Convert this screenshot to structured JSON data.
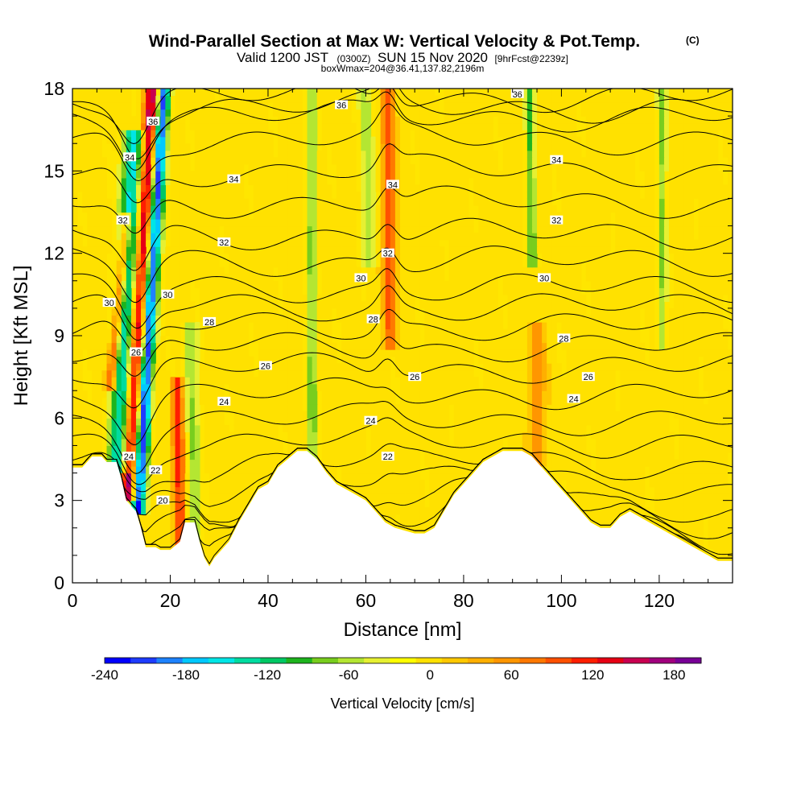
{
  "title": {
    "main": "Wind-Parallel Section at Max W: Vertical Velocity & Pot.Temp.",
    "copyright": "(C)",
    "line2_a": "Valid 1200 JST",
    "line2_b": "(0300Z)",
    "line2_c": "SUN 15 Nov 2020",
    "line2_d": "[9hrFcst@2239z]",
    "line3": "boxWmax=204@36.41,137.82,2196m"
  },
  "chart_data": {
    "type": "heatmap",
    "xlabel": "Distance [nm]",
    "ylabel": "Height [Kft MSL]",
    "xlim": [
      0,
      135
    ],
    "ylim": [
      0,
      18
    ],
    "x_ticks": [
      0,
      20,
      40,
      60,
      80,
      100,
      120
    ],
    "y_ticks": [
      0,
      3,
      6,
      9,
      12,
      15,
      18
    ],
    "x_tick_labels": [
      "0",
      "20",
      "40",
      "60",
      "80",
      "100",
      "120"
    ],
    "y_tick_labels": [
      "0",
      "3",
      "6",
      "9",
      "12",
      "15",
      "18"
    ],
    "terrain_height_kft": [
      [
        0,
        4.2
      ],
      [
        2,
        4.2
      ],
      [
        4,
        4.6
      ],
      [
        6,
        4.6
      ],
      [
        7,
        4.4
      ],
      [
        9,
        4.4
      ],
      [
        10,
        3.8
      ],
      [
        11,
        3.0
      ],
      [
        13,
        2.6
      ],
      [
        14,
        2.0
      ],
      [
        15,
        1.3
      ],
      [
        17,
        1.3
      ],
      [
        18,
        1.2
      ],
      [
        20,
        1.2
      ],
      [
        22,
        1.5
      ],
      [
        23,
        2.2
      ],
      [
        25,
        2.2
      ],
      [
        26,
        1.5
      ],
      [
        27,
        0.9
      ],
      [
        28,
        0.6
      ],
      [
        29,
        0.9
      ],
      [
        30,
        1.1
      ],
      [
        32,
        1.5
      ],
      [
        34,
        2.2
      ],
      [
        36,
        2.8
      ],
      [
        38,
        3.4
      ],
      [
        40,
        3.6
      ],
      [
        42,
        4.2
      ],
      [
        44,
        4.5
      ],
      [
        46,
        4.8
      ],
      [
        48,
        4.8
      ],
      [
        50,
        4.5
      ],
      [
        52,
        4.0
      ],
      [
        54,
        3.6
      ],
      [
        56,
        3.4
      ],
      [
        58,
        3.2
      ],
      [
        60,
        3.0
      ],
      [
        62,
        2.6
      ],
      [
        64,
        2.2
      ],
      [
        66,
        2.0
      ],
      [
        68,
        1.9
      ],
      [
        70,
        1.8
      ],
      [
        72,
        1.8
      ],
      [
        74,
        2.0
      ],
      [
        76,
        2.6
      ],
      [
        78,
        3.2
      ],
      [
        80,
        3.6
      ],
      [
        82,
        4.0
      ],
      [
        84,
        4.4
      ],
      [
        86,
        4.6
      ],
      [
        88,
        4.8
      ],
      [
        92,
        4.8
      ],
      [
        94,
        4.6
      ],
      [
        96,
        4.2
      ],
      [
        98,
        3.8
      ],
      [
        100,
        3.4
      ],
      [
        102,
        3.0
      ],
      [
        104,
        2.6
      ],
      [
        106,
        2.2
      ],
      [
        108,
        2.0
      ],
      [
        110,
        2.0
      ],
      [
        112,
        2.4
      ],
      [
        114,
        2.6
      ],
      [
        116,
        2.4
      ],
      [
        118,
        2.2
      ],
      [
        120,
        2.0
      ],
      [
        122,
        1.8
      ],
      [
        124,
        1.6
      ],
      [
        126,
        1.4
      ],
      [
        128,
        1.2
      ],
      [
        130,
        1.0
      ],
      [
        132,
        0.8
      ],
      [
        135,
        0.8
      ]
    ],
    "velocity_features": [
      {
        "x_bottom": 11.5,
        "x_top": 16.5,
        "y_bottom": 3.5,
        "y_top": 18,
        "w": 190,
        "width": 1.6
      },
      {
        "x_bottom": 9.5,
        "x_top": 12.5,
        "y_bottom": 4.5,
        "y_top": 16,
        "w": -160,
        "width": 2.2
      },
      {
        "x_bottom": 13.5,
        "x_top": 18.5,
        "y_bottom": 3.0,
        "y_top": 18,
        "w": -240,
        "width": 1.4
      },
      {
        "x_bottom": 8.0,
        "x_top": 11.0,
        "y_bottom": 7.5,
        "y_top": 13,
        "w": 150,
        "width": 1.0
      },
      {
        "x_bottom": 22.0,
        "x_top": 21.5,
        "y_bottom": 1.5,
        "y_top": 7.0,
        "w": 120,
        "width": 1.3
      },
      {
        "x_bottom": 25.0,
        "x_top": 24.0,
        "y_bottom": 2.0,
        "y_top": 9.0,
        "w": -70,
        "width": 1.5
      },
      {
        "x_bottom": 49.0,
        "x_top": 49.0,
        "y_bottom": 5.0,
        "y_top": 18,
        "w": -80,
        "width": 1.0
      },
      {
        "x_bottom": 65.0,
        "x_top": 64.5,
        "y_bottom": 9.0,
        "y_top": 18,
        "w": 110,
        "width": 1.3
      },
      {
        "x_bottom": 61.0,
        "x_top": 60.0,
        "y_bottom": 12.0,
        "y_top": 18,
        "w": -60,
        "width": 1.5
      },
      {
        "x_bottom": 94.0,
        "x_top": 93.5,
        "y_bottom": 12.0,
        "y_top": 18,
        "w": -90,
        "width": 1.0
      },
      {
        "x_bottom": 120.5,
        "x_top": 120.5,
        "y_bottom": 9.0,
        "y_top": 18,
        "w": -70,
        "width": 1.0
      },
      {
        "x_bottom": 95.0,
        "x_top": 95.0,
        "y_bottom": 4.8,
        "y_top": 9.0,
        "w": 70,
        "width": 1.5
      }
    ],
    "theta_contour_labels": [
      {
        "text": "36",
        "x": 55,
        "y": 17.4
      },
      {
        "text": "36",
        "x": 91,
        "y": 17.8
      },
      {
        "text": "36",
        "x": 16.5,
        "y": 16.8
      },
      {
        "text": "34",
        "x": 11.7,
        "y": 15.5
      },
      {
        "text": "34",
        "x": 33,
        "y": 14.7
      },
      {
        "text": "34",
        "x": 65.5,
        "y": 14.5
      },
      {
        "text": "34",
        "x": 99,
        "y": 15.4
      },
      {
        "text": "32",
        "x": 10.3,
        "y": 13.2
      },
      {
        "text": "32",
        "x": 31,
        "y": 12.4
      },
      {
        "text": "32",
        "x": 64.5,
        "y": 12.0
      },
      {
        "text": "32",
        "x": 99,
        "y": 13.2
      },
      {
        "text": "30",
        "x": 7.5,
        "y": 10.2
      },
      {
        "text": "30",
        "x": 19.5,
        "y": 10.5
      },
      {
        "text": "30",
        "x": 59,
        "y": 11.1
      },
      {
        "text": "30",
        "x": 96.5,
        "y": 11.1
      },
      {
        "text": "28",
        "x": 28,
        "y": 9.5
      },
      {
        "text": "28",
        "x": 61.5,
        "y": 9.6
      },
      {
        "text": "28",
        "x": 100.5,
        "y": 8.9
      },
      {
        "text": "26",
        "x": 13,
        "y": 8.4
      },
      {
        "text": "26",
        "x": 39.5,
        "y": 7.9
      },
      {
        "text": "26",
        "x": 70,
        "y": 7.5
      },
      {
        "text": "26",
        "x": 105.5,
        "y": 7.5
      },
      {
        "text": "24",
        "x": 31,
        "y": 6.6
      },
      {
        "text": "24",
        "x": 61,
        "y": 5.9
      },
      {
        "text": "24",
        "x": 102.5,
        "y": 6.7
      },
      {
        "text": "24",
        "x": 11.5,
        "y": 4.6
      },
      {
        "text": "22",
        "x": 17,
        "y": 4.1
      },
      {
        "text": "22",
        "x": 64.5,
        "y": 4.6
      },
      {
        "text": "20",
        "x": 18.5,
        "y": 3.0
      }
    ],
    "colorbar": {
      "title": "Vertical Velocity [cm/s]",
      "min": -240,
      "max": 200,
      "step": 20,
      "tick_values": [
        -240,
        -180,
        -120,
        -60,
        0,
        60,
        120,
        180
      ],
      "tick_labels": [
        "-240",
        "-180",
        "-120",
        "-60",
        "0",
        "60",
        "120",
        "180"
      ],
      "colors": [
        "#0000ff",
        "#1e3cff",
        "#1e82ff",
        "#00c8ff",
        "#00e6e6",
        "#00dca0",
        "#00c864",
        "#1eb41e",
        "#78cd1e",
        "#b4e632",
        "#e6f032",
        "#ffff00",
        "#ffe100",
        "#ffc800",
        "#ffaf00",
        "#ff9600",
        "#ff7800",
        "#ff5000",
        "#ff1e00",
        "#e60014",
        "#c80050",
        "#a0007d",
        "#780096"
      ]
    }
  }
}
